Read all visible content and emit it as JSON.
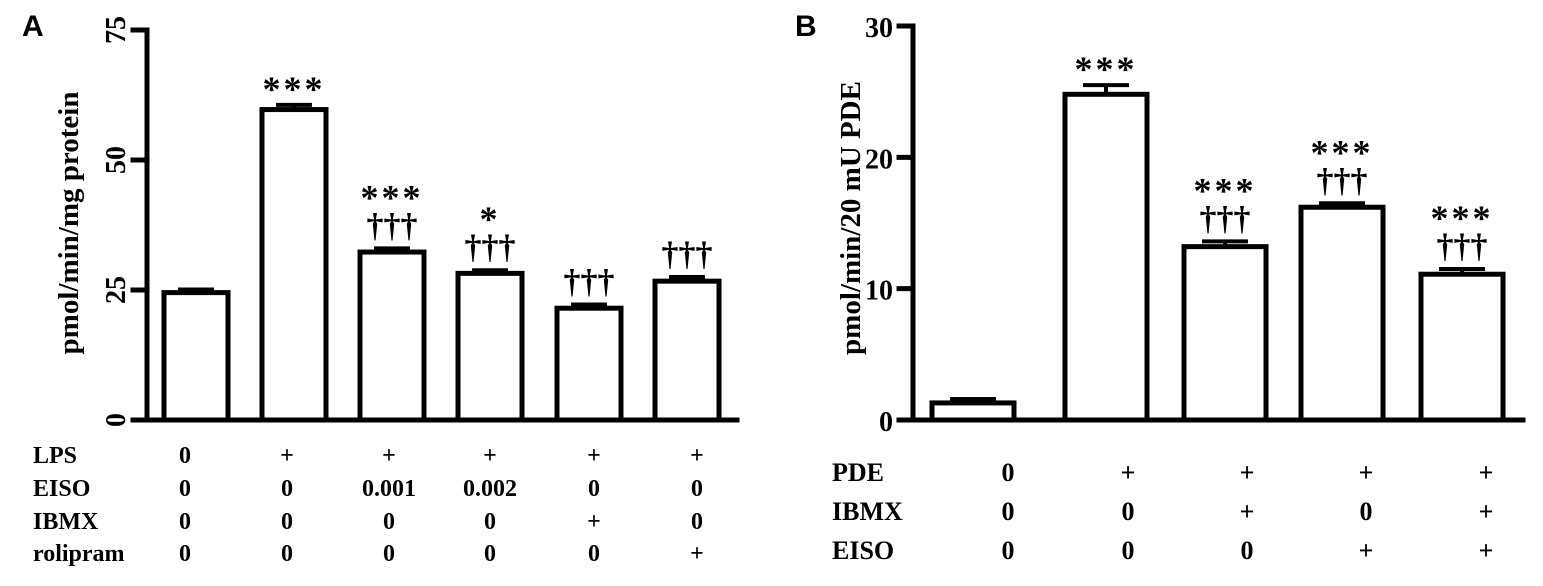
{
  "chart_data": [
    {
      "type": "bar",
      "panel_label": "A",
      "ylabel": "pmol/min/mg protein",
      "ylim": [
        0,
        75
      ],
      "yticks": [
        "0",
        "25",
        "50",
        "75"
      ],
      "bar_color": "#ffffff",
      "values": [
        24.5,
        59.7,
        32.3,
        28.2,
        21.5,
        26.7
      ],
      "errors": [
        0.6,
        0.9,
        0.7,
        0.6,
        0.7,
        0.8
      ],
      "annotations": [
        [],
        [
          "***"
        ],
        [
          "***",
          "†††"
        ],
        [
          "*",
          "†††"
        ],
        [
          "†††"
        ],
        [
          "†††"
        ]
      ],
      "treatment_table": {
        "rows": [
          {
            "label": "LPS",
            "values": [
              "0",
              "+",
              "+",
              "+",
              "+",
              "+"
            ]
          },
          {
            "label": "EISO",
            "values": [
              "0",
              "0",
              "0.001",
              "0.002",
              "0",
              "0"
            ]
          },
          {
            "label": "IBMX",
            "values": [
              "0",
              "0",
              "0",
              "0",
              "+",
              "0"
            ]
          },
          {
            "label": "rolipram",
            "values": [
              "0",
              "0",
              "0",
              "0",
              "0",
              "+"
            ]
          }
        ]
      }
    },
    {
      "type": "bar",
      "panel_label": "B",
      "ylabel": "pmol/min/20 mU PDE",
      "ylim": [
        0,
        30
      ],
      "yticks": [
        "0",
        "10",
        "20",
        "30"
      ],
      "bar_color": "#ffffff",
      "values": [
        1.3,
        24.8,
        13.2,
        16.2,
        11.1
      ],
      "errors": [
        0.3,
        0.7,
        0.4,
        0.3,
        0.4
      ],
      "annotations": [
        [],
        [
          "***"
        ],
        [
          "***",
          "†††"
        ],
        [
          "***",
          "†††"
        ],
        [
          "***",
          "†††"
        ]
      ],
      "treatment_table": {
        "rows": [
          {
            "label": "PDE",
            "values": [
              "0",
              "+",
              "+",
              "+",
              "+"
            ]
          },
          {
            "label": "IBMX",
            "values": [
              "0",
              "0",
              "+",
              "0",
              "+"
            ]
          },
          {
            "label": "EISO",
            "values": [
              "0",
              "0",
              "0",
              "+",
              "+"
            ]
          }
        ]
      }
    }
  ]
}
